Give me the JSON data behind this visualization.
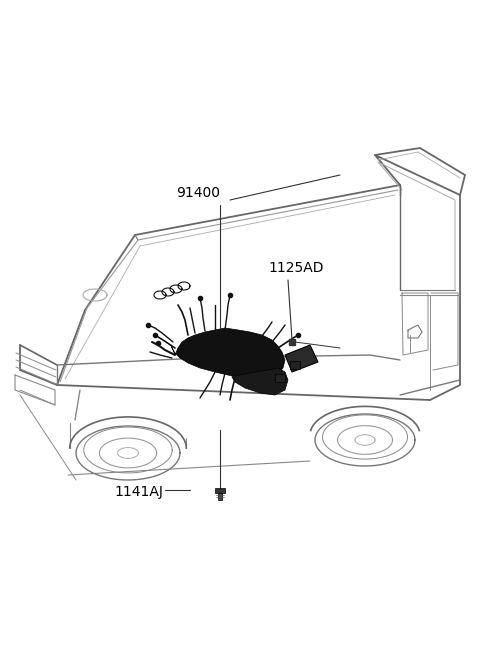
{
  "bg_color": "#ffffff",
  "line_color": "#888888",
  "dark_color": "#000000",
  "label_91400": "91400",
  "label_1125AD": "1125AD",
  "label_1141AJ": "1141AJ",
  "fontsize_labels": 10,
  "fig_w": 4.8,
  "fig_h": 6.55,
  "dpi": 100
}
